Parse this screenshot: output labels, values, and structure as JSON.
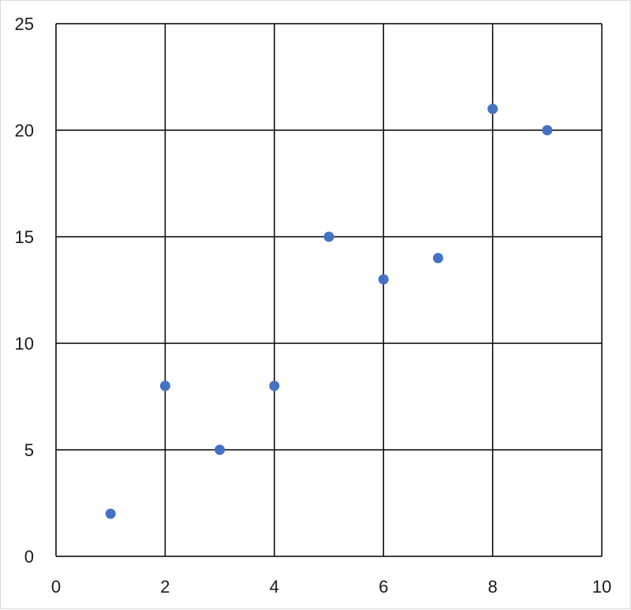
{
  "chart_data": {
    "type": "scatter",
    "title": "",
    "xlabel": "",
    "ylabel": "",
    "xlim": [
      0,
      10
    ],
    "ylim": [
      0,
      25
    ],
    "x_ticks": [
      0,
      2,
      4,
      6,
      8,
      10
    ],
    "y_ticks": [
      0,
      5,
      10,
      15,
      20,
      25
    ],
    "grid": true,
    "legend": "none",
    "marker_color": "#4472c4",
    "points": [
      {
        "x": 1,
        "y": 2
      },
      {
        "x": 2,
        "y": 8
      },
      {
        "x": 3,
        "y": 5
      },
      {
        "x": 4,
        "y": 8
      },
      {
        "x": 5,
        "y": 15
      },
      {
        "x": 6,
        "y": 13
      },
      {
        "x": 7,
        "y": 14
      },
      {
        "x": 8,
        "y": 21
      },
      {
        "x": 9,
        "y": 20
      }
    ]
  }
}
